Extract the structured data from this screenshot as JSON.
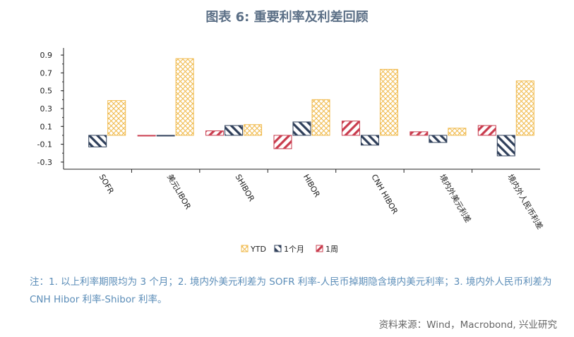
{
  "title": "图表 6: 重要利率及利差回顾",
  "note": "注：1. 以上利率期限均为 3 个月；2. 境内外美元利差为 SOFR 利率-人民币掉期隐含境内美元利率；3. 境内外人民币利差为 CNH Hibor 利率-Shibor 利率。",
  "source": "资料来源：Wind，Macrobond, 兴业研究",
  "colors": {
    "ytd": "#f0b94a",
    "m1": "#2f3f5a",
    "w1": "#c93c4e",
    "axis": "#222222"
  },
  "chart_data": {
    "type": "bar",
    "categories": [
      "SOFR",
      "美元LIBOR",
      "SHIBOR",
      "HIBOR",
      "CNH HIBOR",
      "境内外美元利差",
      "境内外人民币利差"
    ],
    "series": [
      {
        "name": "YTD",
        "values": [
          0.39,
          0.86,
          0.12,
          0.4,
          0.74,
          0.08,
          0.61
        ]
      },
      {
        "name": "1个月",
        "values": [
          -0.13,
          0.0,
          0.11,
          0.15,
          -0.11,
          -0.08,
          -0.23
        ]
      },
      {
        "name": "1周",
        "values": [
          null,
          0.0,
          0.05,
          -0.15,
          0.16,
          0.04,
          0.11
        ]
      }
    ],
    "yticks": [
      "0.9",
      "0.7",
      "0.5",
      "0.3",
      "0.1",
      "-0.1",
      "-0.3"
    ],
    "ylim": [
      -0.38,
      0.98
    ],
    "legend_position": "bottom"
  }
}
